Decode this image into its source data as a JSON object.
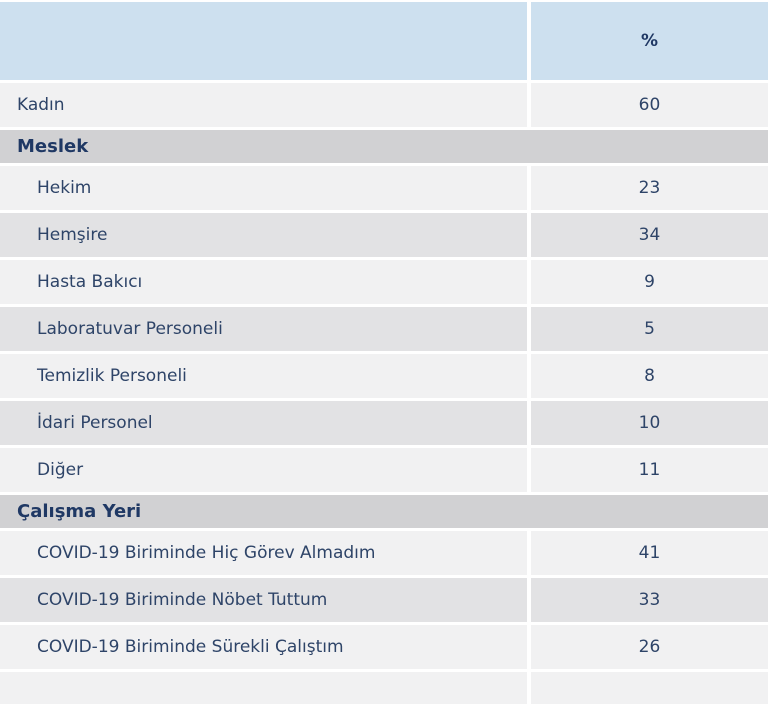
{
  "table": {
    "header": {
      "label_column": "",
      "percent_label": "%"
    },
    "rows": [
      {
        "type": "data",
        "label": "Kadın",
        "value": "60",
        "indent": false,
        "shade": "light"
      },
      {
        "type": "section",
        "label": "Meslek"
      },
      {
        "type": "data",
        "label": "Hekim",
        "value": "23",
        "indent": true,
        "shade": "light"
      },
      {
        "type": "data",
        "label": "Hemşire",
        "value": "34",
        "indent": true,
        "shade": "dark"
      },
      {
        "type": "data",
        "label": "Hasta Bakıcı",
        "value": "9",
        "indent": true,
        "shade": "light"
      },
      {
        "type": "data",
        "label": "Laboratuvar Personeli",
        "value": "5",
        "indent": true,
        "shade": "dark"
      },
      {
        "type": "data",
        "label": "Temizlik Personeli",
        "value": "8",
        "indent": true,
        "shade": "light"
      },
      {
        "type": "data",
        "label": "İdari Personel",
        "value": "10",
        "indent": true,
        "shade": "dark"
      },
      {
        "type": "data",
        "label": "Diğer",
        "value": "11",
        "indent": true,
        "shade": "light"
      },
      {
        "type": "section",
        "label": "Çalışma Yeri"
      },
      {
        "type": "data",
        "label": "COVID-19 Biriminde Hiç Görev Almadım",
        "value": "41",
        "indent": true,
        "shade": "light"
      },
      {
        "type": "data",
        "label": "COVID-19 Biriminde Nöbet Tuttum",
        "value": "33",
        "indent": true,
        "shade": "dark"
      },
      {
        "type": "data",
        "label": "COVID-19 Biriminde Sürekli Çalıştım",
        "value": "26",
        "indent": true,
        "shade": "light"
      }
    ],
    "colors": {
      "header-bg": "#cde0ef",
      "header-text": "#1f3864",
      "row-text": "#2e4468",
      "row-light": "#f1f1f2",
      "row-dark": "#e2e2e4",
      "section-bg": "#d1d1d3"
    }
  }
}
